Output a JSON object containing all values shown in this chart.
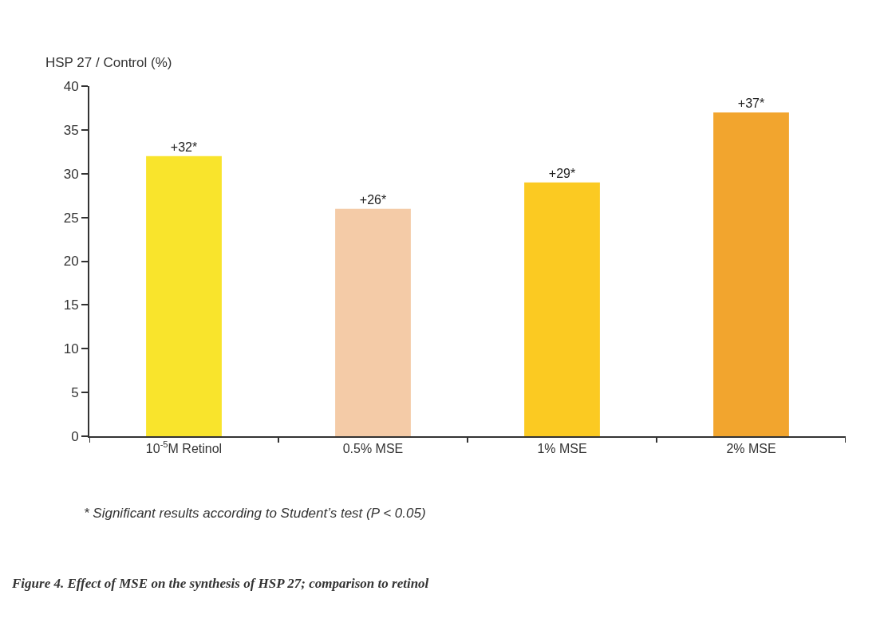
{
  "chart_data": {
    "type": "bar",
    "ylabel": "HSP 27 / Control (%)",
    "categories": [
      "10$^{-5}$M Retinol",
      "0.5% MSE",
      "1% MSE",
      "2% MSE"
    ],
    "values": [
      32,
      26,
      29,
      37
    ],
    "colors": [
      "#f9e42c",
      "#f4cba7",
      "#fbca22",
      "#f2a52e"
    ],
    "value_labels": [
      "+32*",
      "+26*",
      "+29*",
      "+37*"
    ],
    "ylim": [
      0,
      40
    ],
    "yticks": [
      0,
      5,
      10,
      15,
      20,
      25,
      30,
      35,
      40
    ],
    "annotations": [
      "* Significant results according to Student’s test (P < 0.05)",
      "Figure 4. Effect of MSE on the synthesis of HSP 27; comparison to retinol"
    ]
  }
}
